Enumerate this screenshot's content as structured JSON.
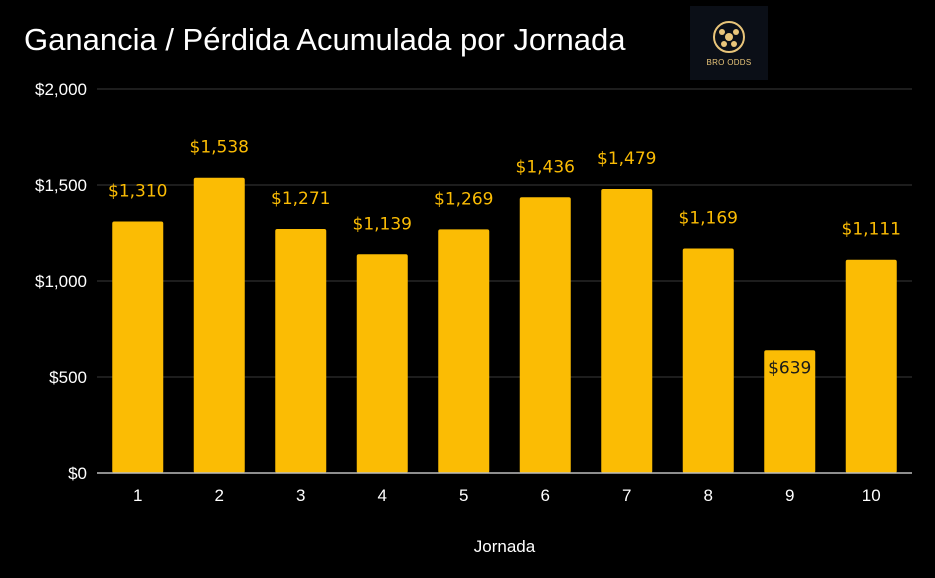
{
  "logo": {
    "text": "BRO ODDS",
    "color": "#e9c57a"
  },
  "chart_data": {
    "type": "bar",
    "title": "Ganancia / Pérdida Acumulada por Jornada",
    "xlabel": "Jornada",
    "ylabel": "",
    "categories": [
      "1",
      "2",
      "3",
      "4",
      "5",
      "6",
      "7",
      "8",
      "9",
      "10"
    ],
    "values": [
      1310,
      1538,
      1271,
      1139,
      1269,
      1436,
      1479,
      1169,
      639,
      1111
    ],
    "data_labels": [
      "$1,310",
      "$1,538",
      "$1,271",
      "$1,139",
      "$1,269",
      "$1,436",
      "$1,479",
      "$1,169",
      "$639",
      "$1,111"
    ],
    "ylim": [
      0,
      2000
    ],
    "yticks": [
      0,
      500,
      1000,
      1500,
      2000
    ],
    "ytick_labels": [
      "$0",
      "$500",
      "$1,000",
      "$1,500",
      "$2,000"
    ],
    "grid": true,
    "legend": "none",
    "colors": {
      "bar": "#fbbc04",
      "label": "#fbbc04",
      "label_inside": "#1a1a1a",
      "background": "#000000",
      "grid": "#3a3a3a",
      "axis": "#bdbdbd",
      "text": "#ffffff"
    }
  }
}
